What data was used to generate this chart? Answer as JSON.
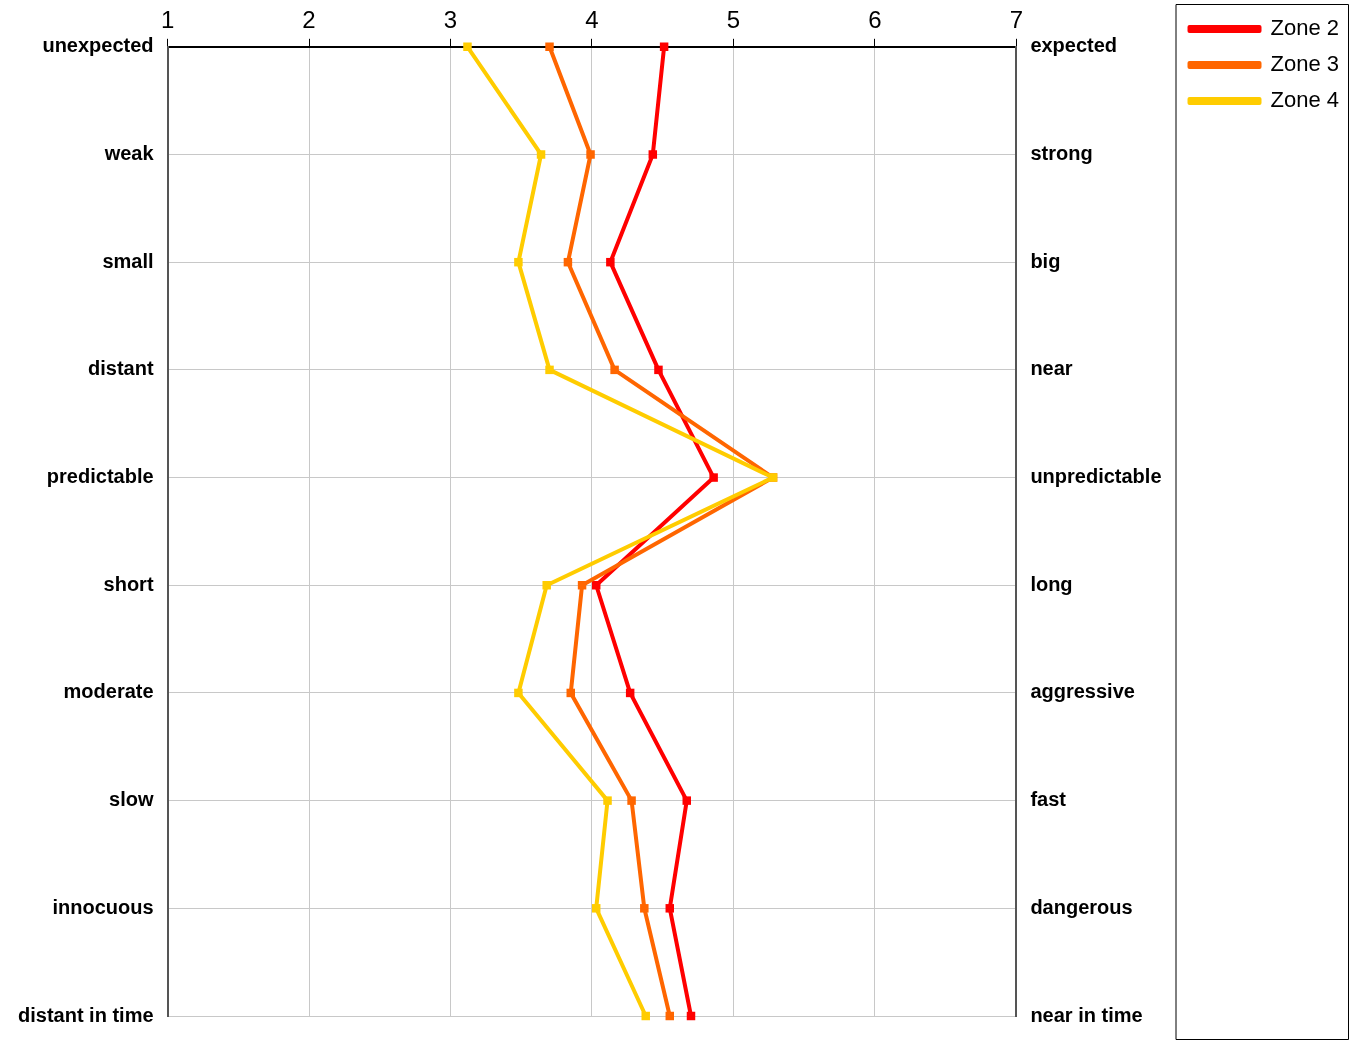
{
  "chart_data": {
    "type": "line",
    "orientation": "horizontal",
    "categories": [
      "unexpected",
      "weak",
      "small",
      "distant",
      "predictable",
      "short",
      "moderate",
      "slow",
      "innocuous",
      "distant in time"
    ],
    "y2_categories": [
      "expected",
      "strong",
      "big",
      "near",
      "unpredictable",
      "long",
      "aggressive",
      "fast",
      "dangerous",
      "near in time"
    ],
    "series": [
      {
        "name": "Zone 2",
        "color": "#ff0000",
        "values": [
          4.51,
          4.43,
          4.13,
          4.47,
          4.86,
          4.03,
          4.27,
          4.67,
          4.55,
          4.7
        ]
      },
      {
        "name": "Zone 3",
        "color": "#ff6600",
        "values": [
          3.7,
          3.99,
          3.83,
          4.16,
          5.28,
          3.93,
          3.85,
          4.28,
          4.37,
          4.55
        ]
      },
      {
        "name": "Zone 4",
        "color": "#ffcc00",
        "values": [
          3.12,
          3.64,
          3.48,
          3.7,
          5.28,
          3.68,
          3.48,
          4.11,
          4.03,
          4.38
        ]
      }
    ],
    "xlim": [
      1,
      7
    ],
    "xticks": [
      1,
      2,
      3,
      4,
      5,
      6,
      7
    ],
    "grid": true,
    "legend": "right",
    "marker": "square",
    "line_style": "solid"
  }
}
